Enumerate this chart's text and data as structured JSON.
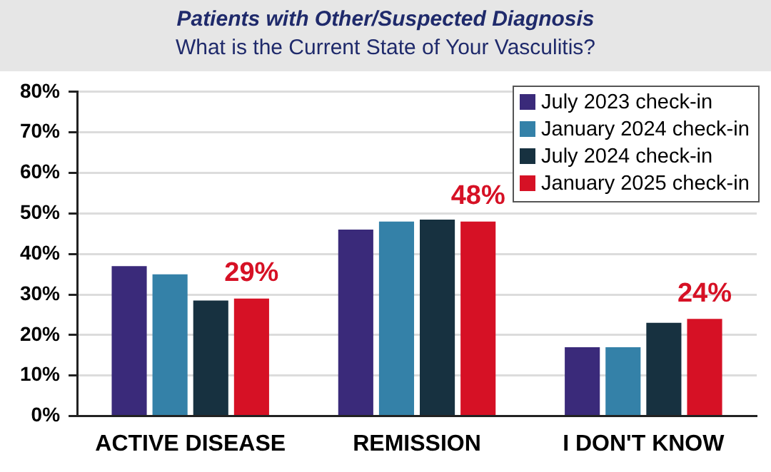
{
  "chart_data": {
    "type": "bar",
    "title": "Patients with Other/Suspected Diagnosis",
    "subtitle": "What is the Current State of Your Vasculitis?",
    "categories": [
      "ACTIVE DISEASE",
      "REMISSION",
      "I DON'T KNOW"
    ],
    "series": [
      {
        "name": "July 2023 check-in",
        "color": "#3a2a7a",
        "values": [
          37,
          46,
          17
        ]
      },
      {
        "name": "January 2024 check-in",
        "color": "#3481a8",
        "values": [
          35,
          48,
          17
        ]
      },
      {
        "name": "July 2024 check-in",
        "color": "#173140",
        "values": [
          28.5,
          48.5,
          23
        ]
      },
      {
        "name": "January 2025 check-in",
        "color": "#d61125",
        "values": [
          29,
          48,
          24
        ],
        "value_labels": [
          "29%",
          "48%",
          "24%"
        ]
      }
    ],
    "ylim": [
      0,
      80
    ],
    "yticks": [
      {
        "value": 0,
        "label": "0%"
      },
      {
        "value": 10,
        "label": "10%"
      },
      {
        "value": 20,
        "label": "20%"
      },
      {
        "value": 30,
        "label": "30%"
      },
      {
        "value": 40,
        "label": "40%"
      },
      {
        "value": 50,
        "label": "50%"
      },
      {
        "value": 60,
        "label": "60%"
      },
      {
        "value": 70,
        "label": "70%"
      },
      {
        "value": 80,
        "label": "80%"
      }
    ],
    "grid": "y",
    "legend": "top right"
  }
}
